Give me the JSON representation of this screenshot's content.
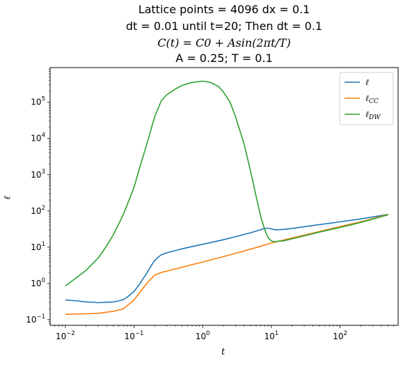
{
  "chart_data": {
    "type": "line",
    "title_lines": [
      "Lattice points = 4096 dx = 0.1",
      "dt = 0.01 until t=20; Then dt = 0.1",
      "C(t) = C0 + Asin(2πt/T)",
      "A = 0.25; T = 0.1"
    ],
    "xlabel": "t",
    "ylabel": "ℓ",
    "xscale": "log",
    "yscale": "log",
    "xlim": [
      0.006,
      700
    ],
    "ylim": [
      0.07,
      900000
    ],
    "x_ticks": [
      {
        "value": 0.01,
        "base": "10",
        "exp": "−2"
      },
      {
        "value": 0.1,
        "base": "10",
        "exp": "−1"
      },
      {
        "value": 1,
        "base": "10",
        "exp": "0"
      },
      {
        "value": 10,
        "base": "10",
        "exp": "1"
      },
      {
        "value": 100,
        "base": "10",
        "exp": "2"
      }
    ],
    "y_ticks": [
      {
        "value": 0.1,
        "base": "10",
        "exp": "−1"
      },
      {
        "value": 1,
        "base": "10",
        "exp": "0"
      },
      {
        "value": 10,
        "base": "10",
        "exp": "1"
      },
      {
        "value": 100,
        "base": "10",
        "exp": "2"
      },
      {
        "value": 1000,
        "base": "10",
        "exp": "3"
      },
      {
        "value": 10000,
        "base": "10",
        "exp": "4"
      },
      {
        "value": 100000,
        "base": "10",
        "exp": "5"
      }
    ],
    "grid": false,
    "legend_position": "top-right",
    "series": [
      {
        "name": "ℓ",
        "sub": "",
        "color": "#1f77b4",
        "points": [
          [
            0.01,
            0.35
          ],
          [
            0.015,
            0.33
          ],
          [
            0.02,
            0.31
          ],
          [
            0.03,
            0.295
          ],
          [
            0.04,
            0.3
          ],
          [
            0.05,
            0.31
          ],
          [
            0.06,
            0.33
          ],
          [
            0.07,
            0.36
          ],
          [
            0.08,
            0.42
          ],
          [
            0.1,
            0.6
          ],
          [
            0.12,
            0.95
          ],
          [
            0.15,
            1.8
          ],
          [
            0.18,
            3.2
          ],
          [
            0.2,
            4.3
          ],
          [
            0.23,
            5.5
          ],
          [
            0.25,
            6.2
          ],
          [
            0.3,
            7.0
          ],
          [
            0.5,
            9.0
          ],
          [
            1,
            12.0
          ],
          [
            2,
            16.0
          ],
          [
            5,
            25.0
          ],
          [
            8,
            33.0
          ],
          [
            9,
            33.5
          ],
          [
            10,
            32.0
          ],
          [
            11,
            30.5
          ],
          [
            12,
            30.0
          ],
          [
            15,
            31.0
          ],
          [
            20,
            33.0
          ],
          [
            50,
            42.0
          ],
          [
            100,
            50.0
          ],
          [
            200,
            60.0
          ],
          [
            500,
            80.0
          ]
        ]
      },
      {
        "name": "ℓ",
        "sub": "CC",
        "color": "#ff7f0e",
        "points": [
          [
            0.01,
            0.14
          ],
          [
            0.02,
            0.145
          ],
          [
            0.03,
            0.15
          ],
          [
            0.05,
            0.17
          ],
          [
            0.07,
            0.2
          ],
          [
            0.1,
            0.35
          ],
          [
            0.12,
            0.55
          ],
          [
            0.15,
            0.95
          ],
          [
            0.18,
            1.4
          ],
          [
            0.2,
            1.7
          ],
          [
            0.25,
            2.0
          ],
          [
            0.3,
            2.2
          ],
          [
            0.5,
            2.8
          ],
          [
            1,
            3.9
          ],
          [
            2,
            5.5
          ],
          [
            5,
            8.8
          ],
          [
            10,
            13.0
          ],
          [
            20,
            18.0
          ],
          [
            50,
            27.0
          ],
          [
            100,
            37.0
          ],
          [
            200,
            50.0
          ],
          [
            500,
            80.0
          ]
        ]
      },
      {
        "name": "ℓ",
        "sub": "DW",
        "color": "#2ca02c",
        "points": [
          [
            0.01,
            0.85
          ],
          [
            0.02,
            2.3
          ],
          [
            0.03,
            5.0
          ],
          [
            0.035,
            7.5
          ],
          [
            0.04,
            11.0
          ],
          [
            0.05,
            22.0
          ],
          [
            0.07,
            80.0
          ],
          [
            0.1,
            450.0
          ],
          [
            0.12,
            1500.0
          ],
          [
            0.15,
            6000.0
          ],
          [
            0.2,
            40000.0
          ],
          [
            0.25,
            110000.0
          ],
          [
            0.3,
            160000.0
          ],
          [
            0.4,
            230000.0
          ],
          [
            0.5,
            290000.0
          ],
          [
            0.7,
            350000.0
          ],
          [
            1.0,
            380000.0
          ],
          [
            1.3,
            350000.0
          ],
          [
            1.7,
            270000.0
          ],
          [
            2.0,
            190000.0
          ],
          [
            2.5,
            100000.0
          ],
          [
            3.0,
            40000.0
          ],
          [
            4.0,
            7000.0
          ],
          [
            5.0,
            1200.0
          ],
          [
            6.0,
            250.0
          ],
          [
            7.0,
            70.0
          ],
          [
            8.0,
            30.0
          ],
          [
            9.0,
            18.0
          ],
          [
            10.0,
            15.0
          ],
          [
            11.0,
            14.0
          ],
          [
            12.0,
            14.5
          ],
          [
            15.0,
            15.0
          ],
          [
            20.0,
            17.0
          ],
          [
            50.0,
            26.0
          ],
          [
            100.0,
            35.0
          ],
          [
            200.0,
            48.0
          ],
          [
            500.0,
            78.0
          ]
        ]
      }
    ]
  }
}
